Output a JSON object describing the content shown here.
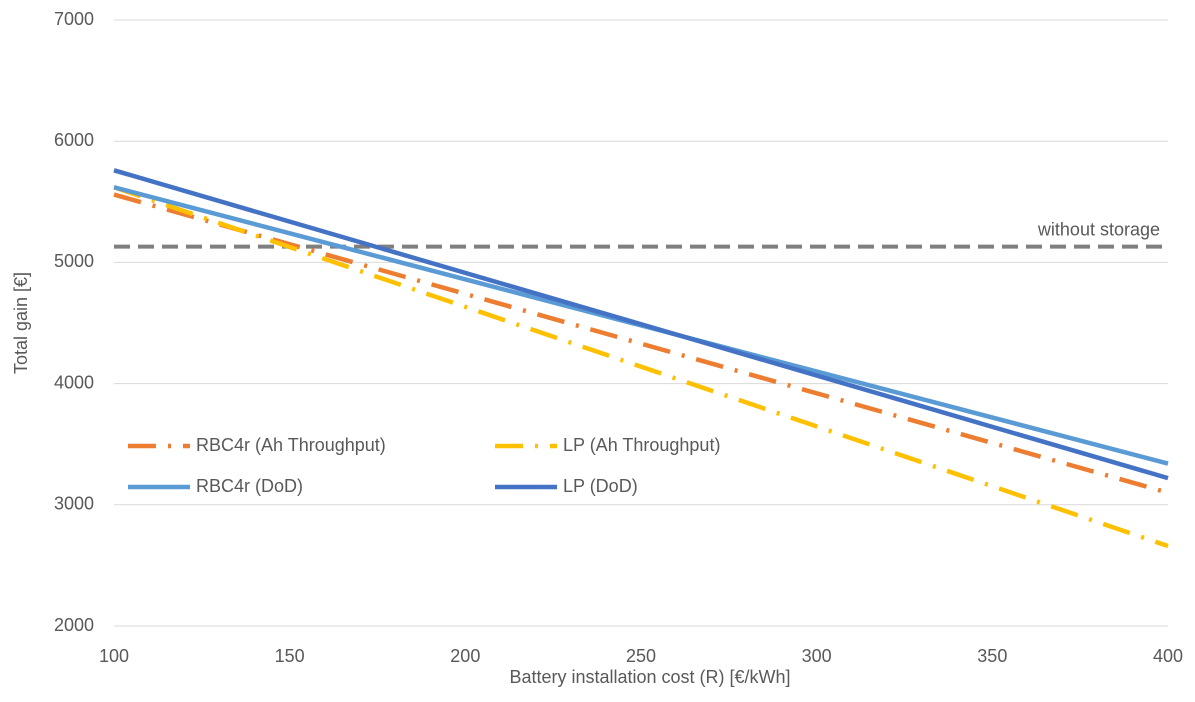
{
  "chart_data": {
    "type": "line",
    "x_label": "Battery installation cost (R) [€/kWh]",
    "y_label": "Total gain [€]",
    "x": [
      100,
      400
    ],
    "xlim": [
      100,
      400
    ],
    "xticks": [
      100,
      150,
      200,
      250,
      300,
      350,
      400
    ],
    "ylim": [
      2000,
      7000
    ],
    "yticks": [
      2000,
      3000,
      4000,
      5000,
      6000,
      7000
    ],
    "grid": true,
    "series": [
      {
        "name": "RBC4r (Ah Throughput)",
        "color": "#ed7d31",
        "style": "dash-dot",
        "values": [
          5560,
          3100
        ]
      },
      {
        "name": "LP (Ah Throughput)",
        "color": "#ffc000",
        "style": "dash-dot",
        "values": [
          5620,
          2660
        ]
      },
      {
        "name": "RBC4r (DoD)",
        "color": "#5b9bd5",
        "style": "solid",
        "values": [
          5620,
          3340
        ]
      },
      {
        "name": "LP (DoD)",
        "color": "#4472c4",
        "style": "solid",
        "values": [
          5760,
          3220
        ]
      }
    ],
    "baseline": {
      "label": "without storage",
      "color": "#7f7f7f",
      "style": "dashed",
      "value": 5130
    }
  }
}
